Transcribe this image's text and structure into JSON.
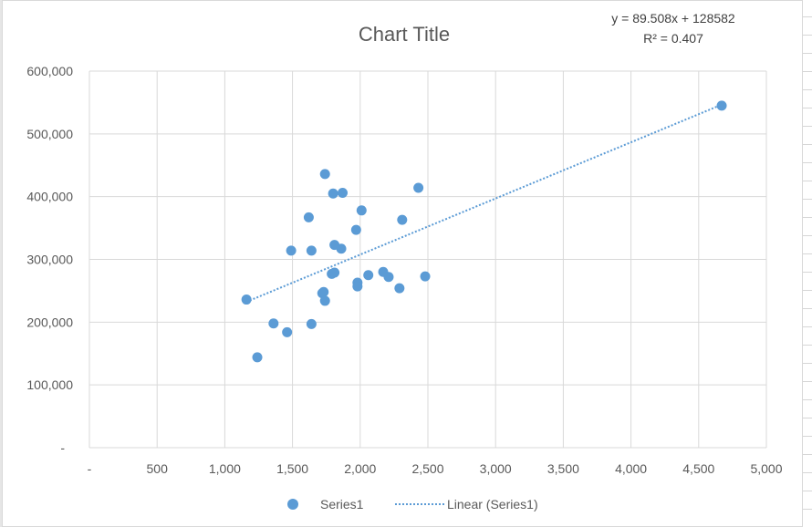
{
  "chart_data": {
    "type": "scatter",
    "title": "Chart Title",
    "trendline": {
      "equation": "y = 89.508x + 128582",
      "r_squared": "R² = 0.407",
      "slope": 89.508,
      "intercept": 128582,
      "x_range": [
        1160,
        4670
      ],
      "style": "dotted",
      "color": "#5b9bd5"
    },
    "series": [
      {
        "name": "Series1",
        "color": "#5b9bd5",
        "points": [
          [
            1160,
            236000
          ],
          [
            1240,
            144000
          ],
          [
            1360,
            198000
          ],
          [
            1460,
            184000
          ],
          [
            1490,
            314000
          ],
          [
            1620,
            367000
          ],
          [
            1640,
            314000
          ],
          [
            1640,
            197000
          ],
          [
            1720,
            246000
          ],
          [
            1730,
            248000
          ],
          [
            1740,
            234000
          ],
          [
            1740,
            436000
          ],
          [
            1790,
            277000
          ],
          [
            1800,
            405000
          ],
          [
            1810,
            323000
          ],
          [
            1810,
            279000
          ],
          [
            1860,
            317000
          ],
          [
            1870,
            406000
          ],
          [
            1970,
            347000
          ],
          [
            1980,
            263000
          ],
          [
            1980,
            257000
          ],
          [
            2010,
            378000
          ],
          [
            2060,
            275000
          ],
          [
            2170,
            280000
          ],
          [
            2210,
            272000
          ],
          [
            2290,
            254000
          ],
          [
            2310,
            363000
          ],
          [
            2430,
            414000
          ],
          [
            2480,
            273000
          ],
          [
            4670,
            545000
          ]
        ]
      }
    ],
    "xlim": [
      0,
      5000
    ],
    "ylim": [
      0,
      600000
    ],
    "x_ticks": [
      {
        "value": 0,
        "label": "-"
      },
      {
        "value": 500,
        "label": "500"
      },
      {
        "value": 1000,
        "label": "1,000"
      },
      {
        "value": 1500,
        "label": "1,500"
      },
      {
        "value": 2000,
        "label": "2,000"
      },
      {
        "value": 2500,
        "label": "2,500"
      },
      {
        "value": 3000,
        "label": "3,000"
      },
      {
        "value": 3500,
        "label": "3,500"
      },
      {
        "value": 4000,
        "label": "4,000"
      },
      {
        "value": 4500,
        "label": "4,500"
      },
      {
        "value": 5000,
        "label": "5,000"
      }
    ],
    "y_ticks": [
      {
        "value": 0,
        "label": "-"
      },
      {
        "value": 100000,
        "label": "100,000"
      },
      {
        "value": 200000,
        "label": "200,000"
      },
      {
        "value": 300000,
        "label": "300,000"
      },
      {
        "value": 400000,
        "label": "400,000"
      },
      {
        "value": 500000,
        "label": "500,000"
      },
      {
        "value": 600000,
        "label": "600,000"
      }
    ],
    "grid": true,
    "legend": {
      "position": "bottom",
      "entries": [
        "Series1",
        "Linear (Series1)"
      ]
    },
    "gridline_color": "#d9d9d9"
  }
}
